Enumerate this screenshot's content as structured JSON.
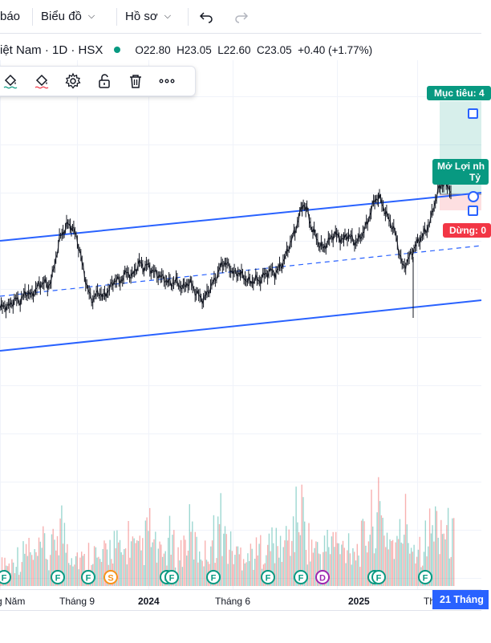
{
  "topbar": {
    "alerts_label": "báo",
    "chart_menu_label": "Biểu đồ",
    "profile_menu_label": "Hồ sơ"
  },
  "symbol": {
    "title": "iệt Nam · 1D · HSX",
    "open": "O22.80",
    "high": "H23.05",
    "low": "L22.60",
    "close": "C23.05",
    "change": "+0.40 (+1.77%)"
  },
  "position_tool": {
    "target_label": "Mục tiêu: 4",
    "open_label_line1": "Mở Lợi nh",
    "open_label_line2": "Tỷ",
    "stop_label": "Dừng: 0"
  },
  "date_badge": "21 Tháng",
  "chart_data": {
    "type": "candlestick",
    "title": "",
    "x_ticks": [
      "g Năm",
      "Tháng 9",
      "2024",
      "Tháng 6",
      "2025",
      "Th"
    ],
    "x_ticks_bold": [
      "2024",
      "2025"
    ],
    "price_series_relative": [
      0.18,
      0.2,
      0.19,
      0.22,
      0.25,
      0.23,
      0.28,
      0.3,
      0.27,
      0.33,
      0.35,
      0.38,
      0.34,
      0.4,
      0.55,
      0.7,
      0.75,
      0.8,
      0.78,
      0.72,
      0.6,
      0.45,
      0.32,
      0.24,
      0.28,
      0.3,
      0.26,
      0.31,
      0.35,
      0.4,
      0.37,
      0.42,
      0.45,
      0.41,
      0.47,
      0.52,
      0.48,
      0.5,
      0.46,
      0.44,
      0.42,
      0.4,
      0.38,
      0.36,
      0.39,
      0.35,
      0.33,
      0.37,
      0.36,
      0.3,
      0.27,
      0.24,
      0.3,
      0.35,
      0.4,
      0.47,
      0.52,
      0.5,
      0.46,
      0.43,
      0.45,
      0.41,
      0.39,
      0.37,
      0.4,
      0.38,
      0.42,
      0.44,
      0.46,
      0.43,
      0.48,
      0.52,
      0.6,
      0.68,
      0.75,
      0.86,
      0.95,
      0.9,
      0.78,
      0.72,
      0.65,
      0.62,
      0.66,
      0.7,
      0.73,
      0.7,
      0.68,
      0.72,
      0.7,
      0.66,
      0.69,
      0.74,
      0.8,
      0.9,
      0.98,
      1.0,
      0.93,
      0.86,
      0.8,
      0.74,
      0.6,
      0.48,
      0.52,
      0.58,
      0.63,
      0.68,
      0.72,
      0.76,
      0.84,
      0.96,
      1.06,
      1.1,
      1.08,
      1.05
    ],
    "volume_series_relative": [
      0.2,
      0.35,
      0.25,
      0.3,
      0.4,
      0.28,
      0.45,
      0.5,
      0.3,
      0.38,
      0.42,
      0.55,
      0.3,
      0.48,
      0.7,
      0.85,
      0.6,
      0.5,
      0.45,
      0.4,
      0.35,
      0.3,
      0.42,
      0.55,
      0.33,
      0.3,
      0.4,
      0.45,
      0.6,
      0.5,
      0.38,
      0.42,
      0.65,
      0.5,
      0.4,
      0.45,
      0.55,
      0.75,
      0.5,
      0.45,
      0.35,
      0.42,
      0.6,
      0.5,
      0.38,
      0.45,
      0.55,
      0.7,
      0.6,
      0.45,
      0.5,
      0.4,
      0.55,
      0.62,
      0.7,
      0.85,
      0.6,
      0.5,
      0.45,
      0.4,
      0.42,
      0.5,
      0.38,
      0.45,
      0.4,
      0.5,
      0.55,
      0.48,
      0.6,
      0.45,
      0.5,
      0.55,
      0.65,
      0.72,
      0.9,
      1.0,
      0.7,
      0.55,
      0.5,
      0.45,
      0.4,
      0.5,
      0.55,
      0.6,
      0.5,
      0.45,
      0.52,
      0.6,
      0.5,
      0.45,
      0.55,
      0.62,
      0.75,
      0.9,
      0.95,
      0.8,
      0.7,
      0.6,
      0.55,
      0.5,
      0.7,
      0.85,
      0.6,
      0.55,
      0.5,
      0.55,
      0.6,
      0.7,
      0.75,
      0.85,
      0.8,
      0.7,
      0.65,
      0.6
    ],
    "channel": {
      "upper_line": true,
      "middle_line_dashed": true,
      "lower_line": true
    },
    "events": [
      {
        "label": "F",
        "type": "F"
      },
      {
        "label": "F",
        "type": "F"
      },
      {
        "label": "F",
        "type": "F"
      },
      {
        "label": "S",
        "type": "S"
      },
      {
        "label": "F",
        "type": "F"
      },
      {
        "label": "F",
        "type": "F"
      },
      {
        "label": "F",
        "type": "F"
      },
      {
        "label": "F",
        "type": "F"
      },
      {
        "label": "F",
        "type": "F"
      },
      {
        "label": "D",
        "type": "D"
      },
      {
        "label": "F",
        "type": "F"
      },
      {
        "label": "F",
        "type": "F"
      },
      {
        "label": "F",
        "type": "F"
      }
    ],
    "colors": {
      "up": "#26a69a",
      "down": "#ef5350",
      "candle": "#131722",
      "channel": "#2962ff",
      "F": "#089981",
      "S": "#f7931a",
      "D": "#9c27b0"
    }
  }
}
